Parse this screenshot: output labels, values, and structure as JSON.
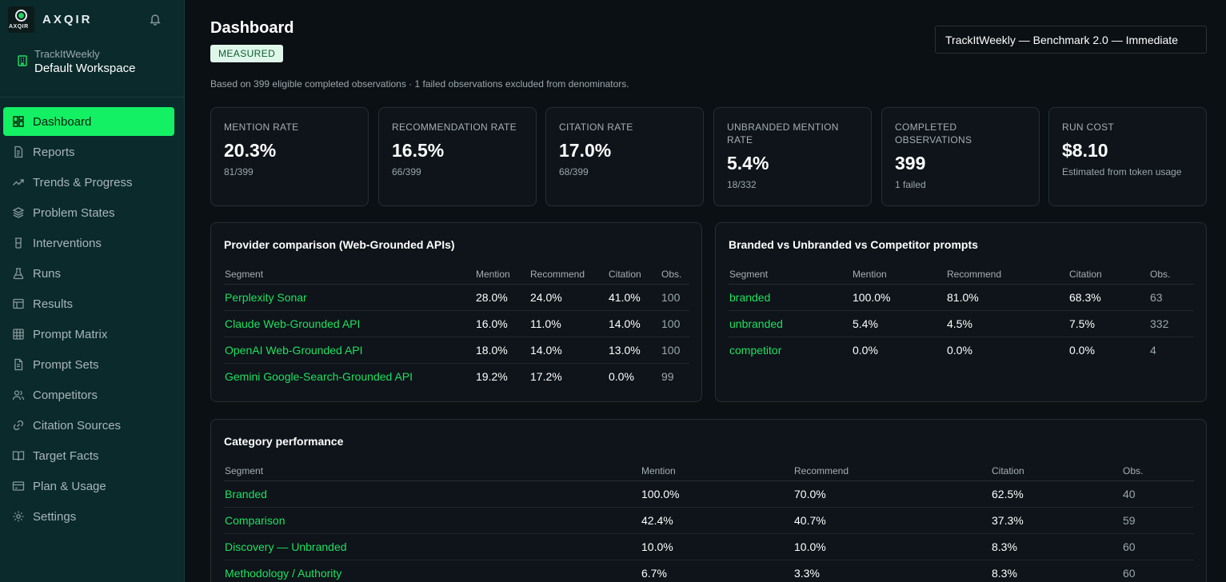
{
  "sidebar": {
    "brand": "AXQIR",
    "logo_text": "AXQIR",
    "workspace_org": "TrackItWeekly",
    "workspace_name": "Default Workspace",
    "items": [
      {
        "label": "Dashboard",
        "icon": "grid-icon",
        "active": true
      },
      {
        "label": "Reports",
        "icon": "document-icon"
      },
      {
        "label": "Trends & Progress",
        "icon": "trend-icon"
      },
      {
        "label": "Problem States",
        "icon": "layers-icon"
      },
      {
        "label": "Interventions",
        "icon": "flask-icon"
      },
      {
        "label": "Runs",
        "icon": "beaker-icon"
      },
      {
        "label": "Results",
        "icon": "table-icon"
      },
      {
        "label": "Prompt Matrix",
        "icon": "matrix-icon"
      },
      {
        "label": "Prompt Sets",
        "icon": "file-text-icon"
      },
      {
        "label": "Competitors",
        "icon": "users-icon"
      },
      {
        "label": "Citation Sources",
        "icon": "link-icon"
      },
      {
        "label": "Target Facts",
        "icon": "book-icon"
      },
      {
        "label": "Plan & Usage",
        "icon": "card-icon"
      },
      {
        "label": "Settings",
        "icon": "gear-icon"
      }
    ]
  },
  "header": {
    "title": "Dashboard",
    "badge": "MEASURED",
    "subtitle": "Based on 399 eligible completed observations · 1 failed observations excluded from denominators.",
    "selector": "TrackItWeekly — Benchmark 2.0 — Immediate"
  },
  "kpis": [
    {
      "label": "MENTION RATE",
      "value": "20.3%",
      "sub": "81/399"
    },
    {
      "label": "RECOMMENDATION RATE",
      "value": "16.5%",
      "sub": "66/399"
    },
    {
      "label": "CITATION RATE",
      "value": "17.0%",
      "sub": "68/399"
    },
    {
      "label": "UNBRANDED MENTION RATE",
      "value": "5.4%",
      "sub": "18/332"
    },
    {
      "label": "COMPLETED OBSERVATIONS",
      "value": "399",
      "sub": "1 failed"
    },
    {
      "label": "RUN COST",
      "value": "$8.10",
      "sub": "Estimated from token usage"
    }
  ],
  "provider": {
    "title": "Provider comparison (Web-Grounded APIs)",
    "headers": [
      "Segment",
      "Mention",
      "Recommend",
      "Citation",
      "Obs."
    ],
    "rows": [
      [
        "Perplexity Sonar",
        "28.0%",
        "24.0%",
        "41.0%",
        "100"
      ],
      [
        "Claude Web-Grounded API",
        "16.0%",
        "11.0%",
        "14.0%",
        "100"
      ],
      [
        "OpenAI Web-Grounded API",
        "18.0%",
        "14.0%",
        "13.0%",
        "100"
      ],
      [
        "Gemini Google-Search-Grounded API",
        "19.2%",
        "17.2%",
        "0.0%",
        "99"
      ]
    ]
  },
  "branded": {
    "title": "Branded vs Unbranded vs Competitor prompts",
    "headers": [
      "Segment",
      "Mention",
      "Recommend",
      "Citation",
      "Obs."
    ],
    "rows": [
      [
        "branded",
        "100.0%",
        "81.0%",
        "68.3%",
        "63"
      ],
      [
        "unbranded",
        "5.4%",
        "4.5%",
        "7.5%",
        "332"
      ],
      [
        "competitor",
        "0.0%",
        "0.0%",
        "0.0%",
        "4"
      ]
    ]
  },
  "category": {
    "title": "Category performance",
    "headers": [
      "Segment",
      "Mention",
      "Recommend",
      "Citation",
      "Obs."
    ],
    "rows": [
      [
        "Branded",
        "100.0%",
        "70.0%",
        "62.5%",
        "40"
      ],
      [
        "Comparison",
        "42.4%",
        "40.7%",
        "37.3%",
        "59"
      ],
      [
        "Discovery — Unbranded",
        "10.0%",
        "10.0%",
        "8.3%",
        "60"
      ],
      [
        "Methodology / Authority",
        "6.7%",
        "3.3%",
        "8.3%",
        "60"
      ]
    ]
  }
}
